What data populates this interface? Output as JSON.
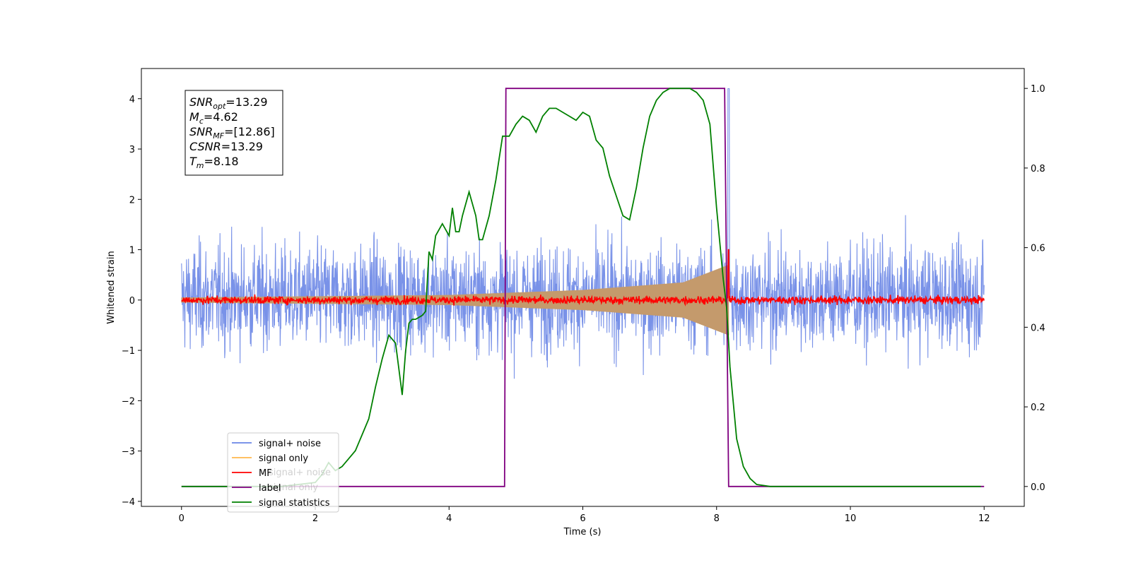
{
  "chart_data": {
    "type": "line",
    "xlabel": "Time (s)",
    "ylabel": "Whitened strain",
    "xlim": [
      -0.6,
      12.6
    ],
    "ylim": [
      -4.1,
      4.6
    ],
    "y2lim": [
      -0.05,
      1.05
    ],
    "xticks": [
      0,
      2,
      4,
      6,
      8,
      10,
      12
    ],
    "yticks": [
      -4,
      -3,
      -2,
      -1,
      0,
      1,
      2,
      3,
      4
    ],
    "y2ticks": [
      0.0,
      0.2,
      0.4,
      0.6,
      0.8,
      1.0
    ],
    "xtick_labels": [
      "0",
      "2",
      "4",
      "6",
      "8",
      "10",
      "12"
    ],
    "ytick_labels": [
      "−4",
      "−3",
      "−2",
      "−1",
      "0",
      "1",
      "2",
      "3",
      "4"
    ],
    "y2tick_labels": [
      "0.0",
      "0.2",
      "0.4",
      "0.6",
      "0.8",
      "1.0"
    ],
    "grid": false,
    "legend_position": "lower-left",
    "series": [
      {
        "name": "signal+ noise",
        "color": "#6a86e6",
        "axis": "left",
        "x_range": [
          0,
          12
        ],
        "approx_amplitude": [
          -2.9,
          3.3
        ]
      },
      {
        "name": "signal only",
        "color": "#ffb74d",
        "axis": "left",
        "x_range": [
          0,
          8.18
        ],
        "envelope": [
          [
            0,
            0.05
          ],
          [
            4,
            0.1
          ],
          [
            6,
            0.2
          ],
          [
            7.5,
            0.35
          ],
          [
            8.18,
            0.7
          ]
        ]
      },
      {
        "name": "MF",
        "color": "#ff0000",
        "axis": "left",
        "x_range": [
          0,
          12
        ],
        "approx_amplitude": [
          -0.15,
          0.15
        ],
        "spike": [
          8.18,
          1.0
        ]
      },
      {
        "name": "label",
        "color": "#800080",
        "axis": "right",
        "x": [
          0,
          4.83,
          4.85,
          8.12,
          8.18,
          12
        ],
        "y": [
          0,
          0,
          1,
          1,
          0,
          0
        ]
      },
      {
        "name": "signal statistics",
        "color": "#008000",
        "axis": "right",
        "x": [
          0,
          0.3,
          0.5,
          1.0,
          1.5,
          2.0,
          2.1,
          2.2,
          2.3,
          2.4,
          2.5,
          2.6,
          2.7,
          2.8,
          2.9,
          3.0,
          3.1,
          3.2,
          3.3,
          3.35,
          3.4,
          3.45,
          3.5,
          3.6,
          3.65,
          3.7,
          3.75,
          3.8,
          3.9,
          4.0,
          4.05,
          4.1,
          4.15,
          4.2,
          4.3,
          4.4,
          4.45,
          4.5,
          4.6,
          4.7,
          4.8,
          4.9,
          5.0,
          5.1,
          5.2,
          5.3,
          5.4,
          5.5,
          5.6,
          5.7,
          5.8,
          5.9,
          6.0,
          6.1,
          6.2,
          6.3,
          6.4,
          6.5,
          6.6,
          6.7,
          6.8,
          6.9,
          7.0,
          7.1,
          7.2,
          7.3,
          7.4,
          7.5,
          7.6,
          7.7,
          7.8,
          7.9,
          8.0,
          8.1,
          8.15,
          8.2,
          8.3,
          8.4,
          8.5,
          8.6,
          8.8,
          10.0,
          11.95
        ],
        "y": [
          0.0,
          0.0,
          0.0,
          0.0,
          0.0,
          0.01,
          0.03,
          0.06,
          0.04,
          0.05,
          0.07,
          0.09,
          0.13,
          0.17,
          0.25,
          0.32,
          0.38,
          0.36,
          0.23,
          0.34,
          0.41,
          0.42,
          0.42,
          0.43,
          0.44,
          0.59,
          0.57,
          0.63,
          0.66,
          0.63,
          0.7,
          0.64,
          0.64,
          0.68,
          0.74,
          0.68,
          0.62,
          0.62,
          0.68,
          0.77,
          0.88,
          0.88,
          0.91,
          0.93,
          0.92,
          0.89,
          0.93,
          0.95,
          0.95,
          0.94,
          0.93,
          0.92,
          0.94,
          0.93,
          0.87,
          0.85,
          0.78,
          0.73,
          0.68,
          0.67,
          0.75,
          0.85,
          0.93,
          0.97,
          0.99,
          1.0,
          1.0,
          1.0,
          1.0,
          0.99,
          0.97,
          0.91,
          0.7,
          0.52,
          0.45,
          0.3,
          0.12,
          0.05,
          0.02,
          0.005,
          0.0,
          0.0,
          0.0
        ]
      }
    ]
  },
  "annotation": {
    "lines": [
      {
        "sym": "SNR",
        "sub": "opt",
        "val": "=13.29"
      },
      {
        "sym": "M",
        "sub": "c",
        "val": "=4.62"
      },
      {
        "sym": "SNR",
        "sub": "MF",
        "val": "=[12.86]"
      },
      {
        "sym": "CSNR",
        "sub": "",
        "val": "=13.29"
      },
      {
        "sym": "T",
        "sub": "m",
        "val": "=8.18"
      }
    ]
  },
  "legend": {
    "items": [
      {
        "label": "signal+ noise",
        "color": "#6a86e6"
      },
      {
        "label": "signal only",
        "color": "#ffb74d"
      },
      {
        "label": "MF",
        "color": "#ff0000"
      },
      {
        "label": "label",
        "color": "#800080"
      },
      {
        "label": "signal statistics",
        "color": "#008000"
      }
    ],
    "ghost_labels": [
      "signal+ noise",
      "signal only"
    ]
  }
}
